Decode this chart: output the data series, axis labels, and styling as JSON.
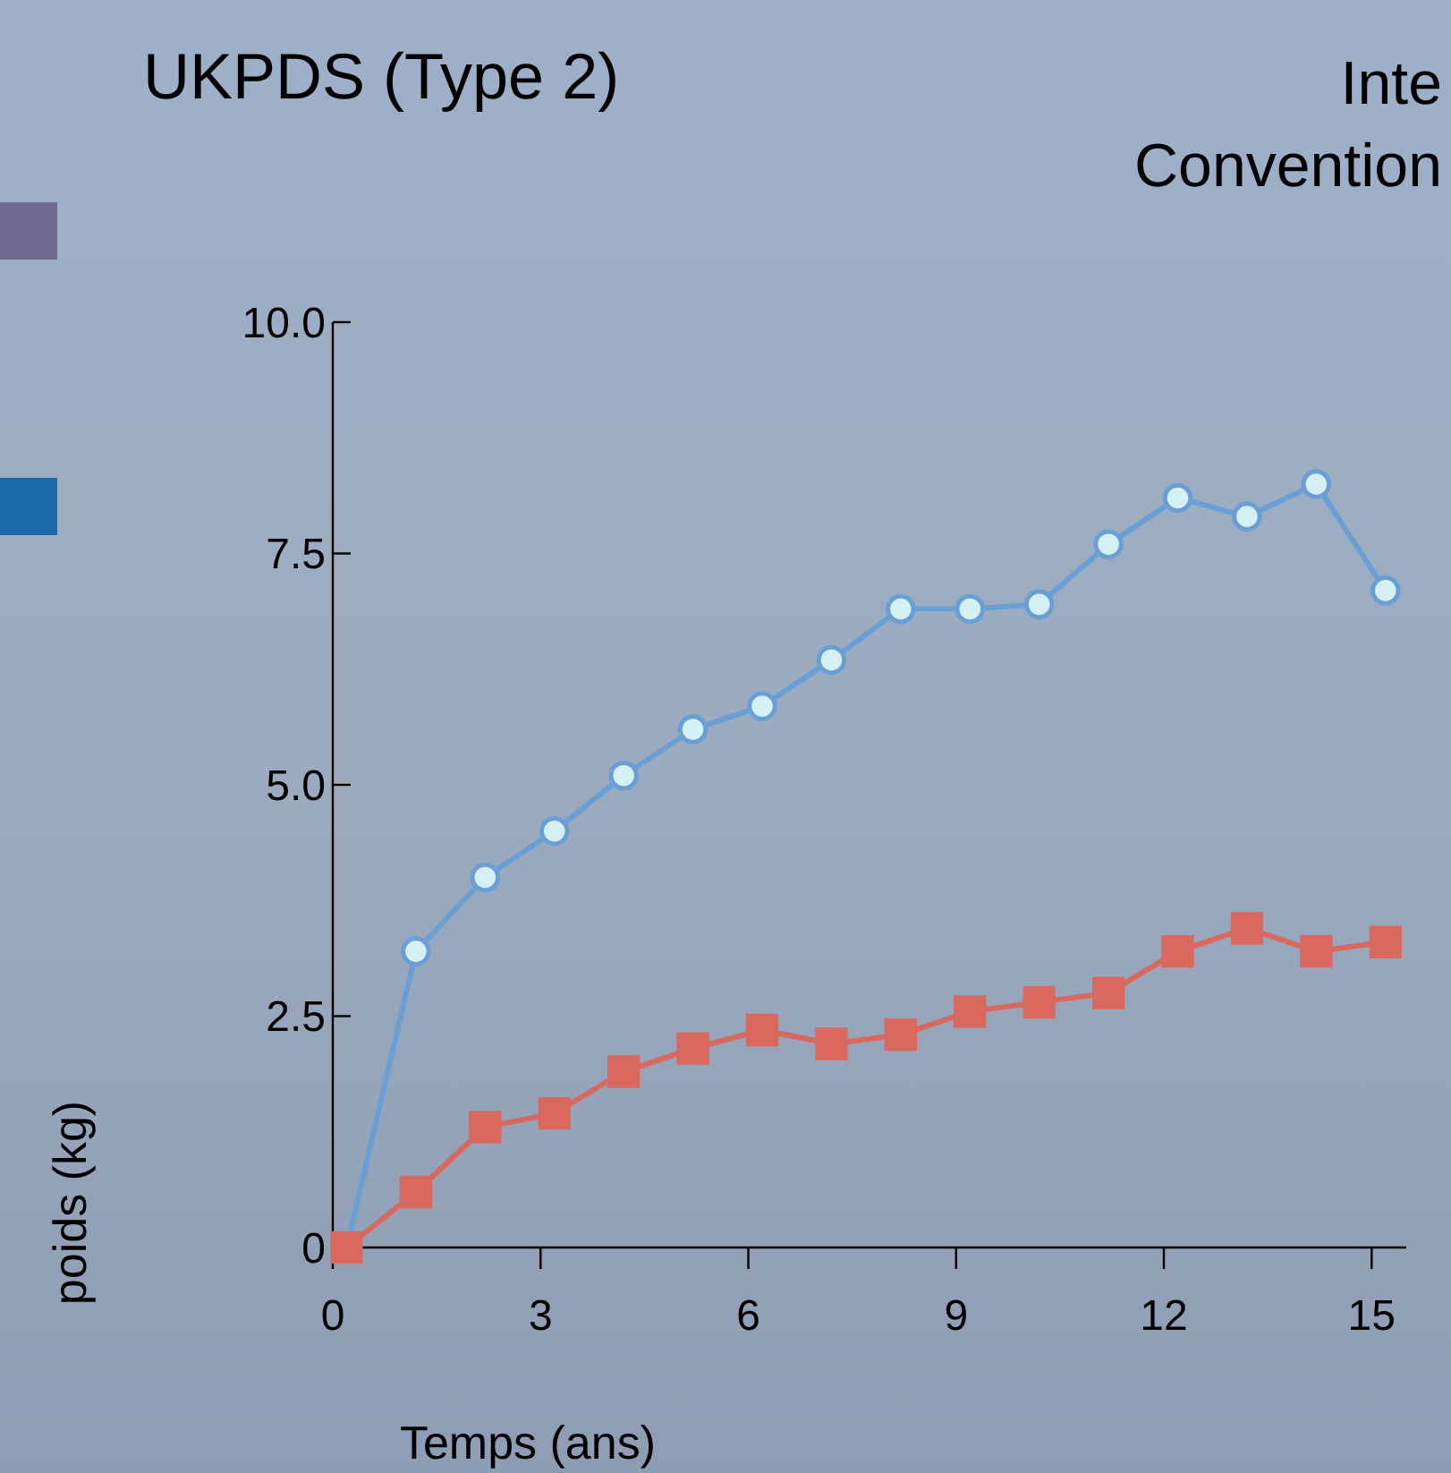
{
  "chart_data": {
    "type": "line",
    "title": "UKPDS (Type 2)",
    "annotations": [
      "Inte",
      "Convention"
    ],
    "xlabel": "Temps (ans)",
    "ylabel": "poids (kg)",
    "xlim": [
      0,
      15.5
    ],
    "xticks": [
      0,
      3,
      6,
      9,
      12,
      15
    ],
    "ylim": [
      0,
      10
    ],
    "yticks": [
      {
        "value": 0,
        "label": "0"
      },
      2.5,
      {
        "value": 5,
        "label": "5.0"
      },
      7.5,
      {
        "value": 10,
        "label": "10.0"
      }
    ],
    "x": [
      0.2,
      1.2,
      2.2,
      3.2,
      4.2,
      5.2,
      6.2,
      7.2,
      8.2,
      9.2,
      10.2,
      11.2,
      12.2,
      13.2,
      14.2,
      15.2
    ],
    "series": [
      {
        "color": "#6a9fd6",
        "marker": "circle",
        "values": [
          0,
          3.2,
          4.0,
          4.5,
          5.1,
          5.6,
          5.85,
          6.35,
          6.9,
          6.9,
          6.95,
          7.6,
          8.1,
          7.9,
          8.25,
          7.1
        ]
      },
      {
        "color": "#d9695f",
        "marker": "square",
        "values": [
          0,
          0.6,
          1.3,
          1.45,
          1.9,
          2.15,
          2.35,
          2.2,
          2.3,
          2.55,
          2.65,
          2.75,
          3.2,
          3.45,
          3.2,
          3.3
        ]
      }
    ]
  }
}
